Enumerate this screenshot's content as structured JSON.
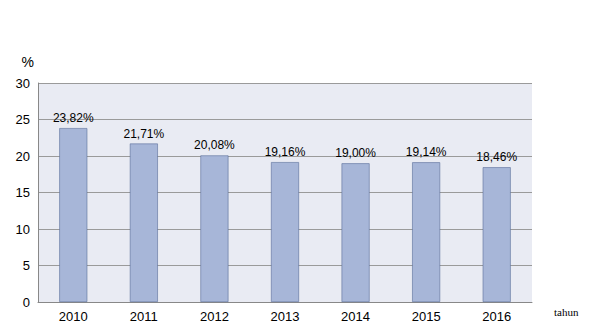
{
  "chart_data": {
    "type": "bar",
    "categories": [
      "2010",
      "2011",
      "2012",
      "2013",
      "2014",
      "2015",
      "2016"
    ],
    "values": [
      23.82,
      21.71,
      20.08,
      19.16,
      19.0,
      19.14,
      18.46
    ],
    "value_labels": [
      "23,82%",
      "21,71%",
      "20,08%",
      "19,16%",
      "19,00%",
      "19,14%",
      "18,46%"
    ],
    "color": "#a7b6d8",
    "ylim": [
      0,
      30
    ],
    "yticks": [
      0,
      5,
      10,
      15,
      20,
      25,
      30
    ],
    "grid": true,
    "data_labels": true,
    "ylabel": "%",
    "xlabel": "tahun"
  }
}
